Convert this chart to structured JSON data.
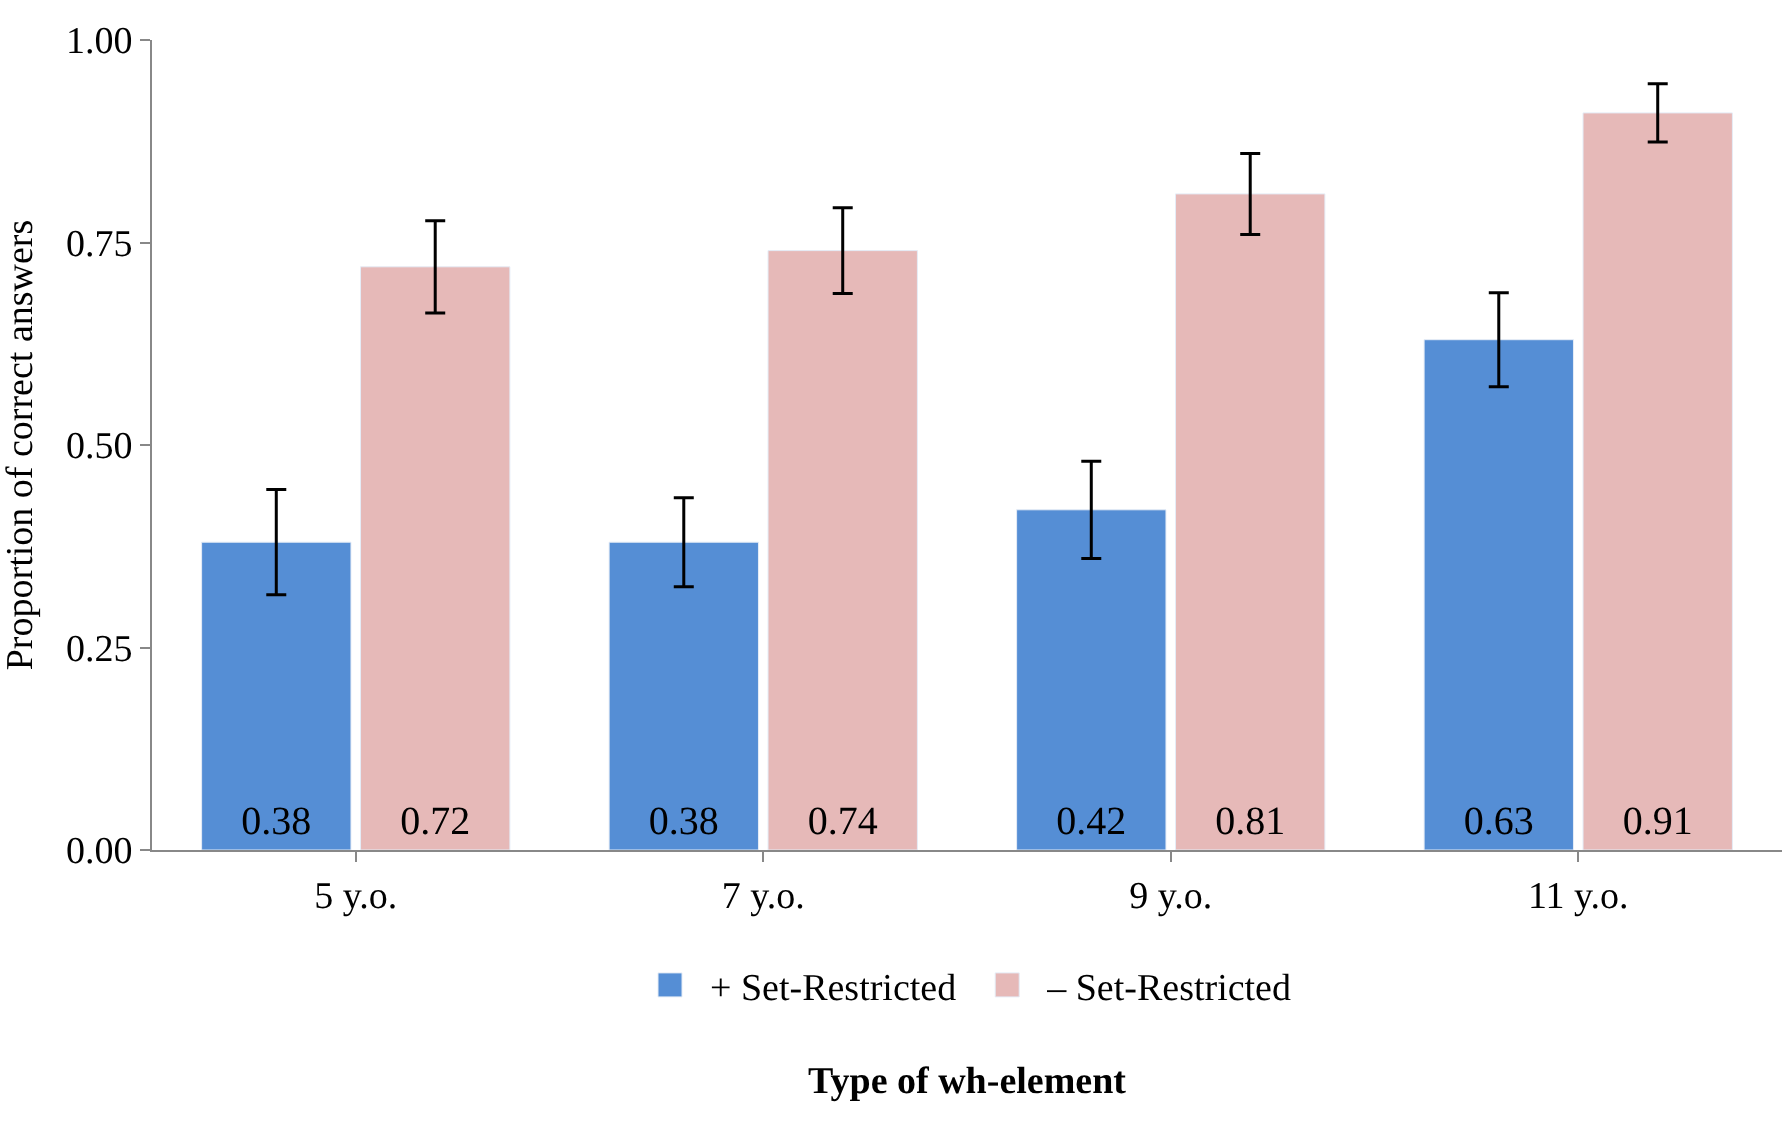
{
  "chart_data": {
    "type": "bar",
    "xlabel": "Type of wh-element",
    "ylabel": "Proportion of correct answers",
    "categories": [
      "5 y.o.",
      "7 y.o.",
      "9 y.o.",
      "11 y.o."
    ],
    "series": [
      {
        "name": "+ Set-Restricted",
        "color": "#558ed5",
        "values": [
          0.38,
          0.38,
          0.42,
          0.63
        ],
        "errors": [
          0.065,
          0.055,
          0.06,
          0.058
        ]
      },
      {
        "name": "– Set-Restricted",
        "color": "#e6b9b8",
        "values": [
          0.72,
          0.74,
          0.81,
          0.91
        ],
        "errors": [
          0.057,
          0.053,
          0.05,
          0.036
        ]
      }
    ],
    "ylim": [
      0,
      1
    ],
    "yticks": [
      {
        "value": 0,
        "label": "0.00"
      },
      {
        "value": 0.25,
        "label": "0.25"
      },
      {
        "value": 0.5,
        "label": "0.50"
      },
      {
        "value": 0.75,
        "label": "0.75"
      },
      {
        "value": 1,
        "label": "1.00"
      }
    ],
    "data_labels": true,
    "legend": "bottom"
  }
}
